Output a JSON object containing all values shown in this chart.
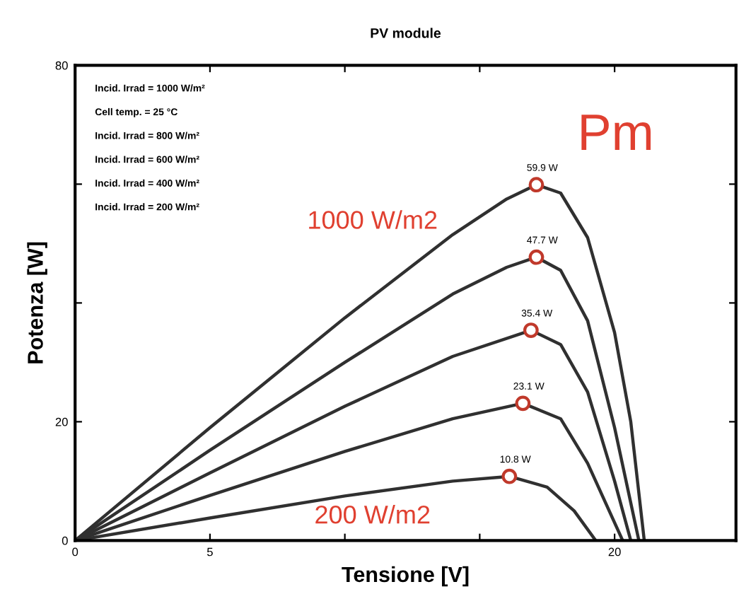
{
  "chart_data": {
    "type": "line",
    "title": "PV module",
    "xlabel": "Tensione [V]",
    "ylabel": "Potenza [W]",
    "xlim": [
      0,
      24.5
    ],
    "ylim": [
      0,
      80
    ],
    "xticks": [
      0,
      5,
      {
        "value": 10,
        "label": null
      },
      {
        "value": 15,
        "label": null
      },
      20
    ],
    "yticks": [
      0,
      20,
      {
        "value": 40,
        "label": null
      },
      {
        "value": 60,
        "label": null
      },
      80
    ],
    "grid": false,
    "legend": false,
    "series": [
      {
        "color": "#303030",
        "x": [
          0,
          5,
          10,
          14,
          16,
          17.1,
          18,
          19,
          20,
          20.6,
          21.1
        ],
        "values": [
          0,
          19,
          37.5,
          51.5,
          57.5,
          59.9,
          58.5,
          51,
          35,
          20,
          0
        ]
      },
      {
        "color": "#303030",
        "x": [
          0,
          5,
          10,
          14,
          16,
          17.1,
          18,
          19,
          20,
          20.9
        ],
        "values": [
          0,
          15.2,
          30,
          41.5,
          46,
          47.7,
          45.5,
          37,
          19,
          0
        ]
      },
      {
        "color": "#303030",
        "x": [
          0,
          5,
          10,
          14,
          16.9,
          18,
          19,
          20,
          20.6
        ],
        "values": [
          0,
          11.4,
          22.6,
          31,
          35.4,
          33,
          25,
          10,
          0
        ]
      },
      {
        "color": "#303030",
        "x": [
          0,
          5,
          10,
          14,
          16.6,
          18,
          19,
          20.3
        ],
        "values": [
          0,
          7.6,
          15,
          20.5,
          23.1,
          20.5,
          13,
          0
        ]
      },
      {
        "color": "#303030",
        "x": [
          0,
          5,
          10,
          14,
          16.1,
          17.5,
          18.5,
          19.3
        ],
        "values": [
          0,
          3.8,
          7.5,
          10,
          10.8,
          9,
          5,
          0
        ]
      },
      {
        "type": "scatter",
        "marker": "circle",
        "color": "#c0392b",
        "x": [
          17.1,
          17.1,
          16.9,
          16.6,
          16.1
        ],
        "values": [
          59.9,
          47.7,
          35.4,
          23.1,
          10.8
        ],
        "value_labels": [
          "59.9 W",
          "47.7 W",
          "35.4 W",
          "23.1 W",
          "10.8 W"
        ]
      }
    ],
    "annotations": [
      "Incid. Irrad = 1000 W/m²",
      "Cell temp. = 25 °C",
      "Incid. Irrad = 800 W/m²",
      "Incid. Irrad = 600 W/m²",
      "Incid. Irrad = 400 W/m²",
      "Incid. Irrad = 200 W/m²",
      "Pm",
      "1000 W/m2",
      "200 W/m2"
    ]
  }
}
